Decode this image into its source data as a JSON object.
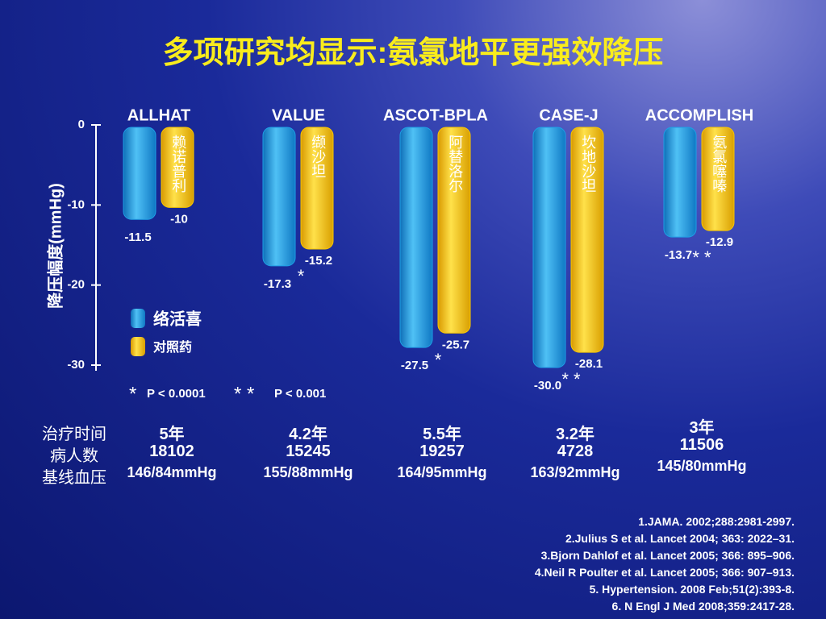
{
  "title": "多项研究均显示:氨氯地平更强效降压",
  "chart_data": {
    "type": "bar",
    "ylabel": "降压幅度(mmHg)",
    "categories": [
      "ALLHAT",
      "VALUE",
      "ASCOT-BPLA",
      "CASE-J",
      "ACCOMPLISH"
    ],
    "series": [
      {
        "name": "络活喜",
        "color": "#1e9fe6",
        "values": [
          -11.5,
          -17.3,
          -27.5,
          -30.0,
          -13.7
        ],
        "value_labels": [
          "-11.5",
          "-17.3",
          "-27.5",
          "-30.0",
          "-13.7"
        ]
      },
      {
        "name": "对照药",
        "color": "#f7c600",
        "values": [
          -10,
          -15.2,
          -25.7,
          -28.1,
          -12.9
        ],
        "bar_labels": [
          "赖诺普利",
          "缬沙坦",
          "阿替洛尔",
          "坎地沙坦",
          "氨氯噻嗪"
        ]
      }
    ],
    "significance": [
      null,
      "*",
      "*",
      "* *",
      "* *"
    ],
    "notes": [
      {
        "symbol": "*",
        "text": "P < 0.0001"
      },
      {
        "symbol": "* *",
        "text": "P < 0.001"
      }
    ],
    "ylim": [
      0,
      -30
    ],
    "yticks": [
      0,
      -10,
      -20,
      -30
    ]
  },
  "study_table": {
    "row_labels": [
      "治疗时间",
      "病人数",
      "基线血压"
    ],
    "rows": [
      [
        "5年",
        "4.2年",
        "5.5年",
        "3.2年",
        "3年"
      ],
      [
        18102,
        15245,
        19257,
        4728,
        11506
      ],
      [
        "146/84mmHg",
        "155/88mmHg",
        "164/95mmHg",
        "163/92mmHg",
        "145/80mmHg"
      ]
    ]
  },
  "references": [
    "1.JAMA. 2002;288:2981-2997.",
    "2.Julius S et al. Lancet 2004; 363: 2022–31.",
    "3.Bjorn Dahlof et al. Lancet 2005; 366: 895–906.",
    "4.Neil R Poulter et al. Lancet 2005; 366: 907–913.",
    "5. Hypertension. 2008 Feb;51(2):393-8.",
    "6. N Engl J Med 2008;359:2417-28."
  ]
}
